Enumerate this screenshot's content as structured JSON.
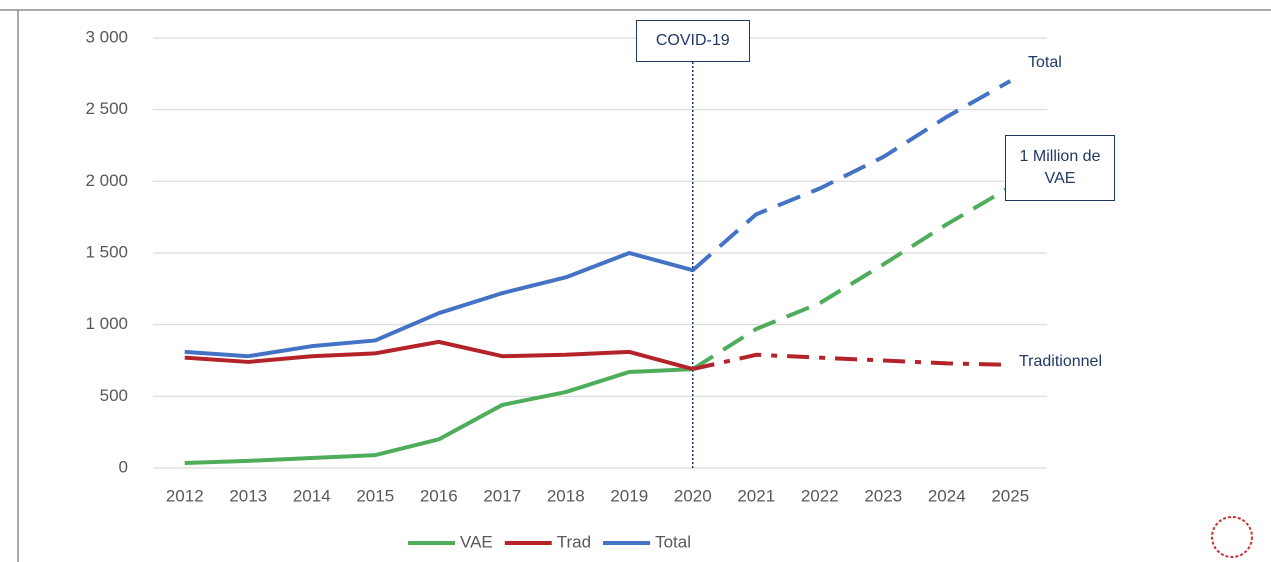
{
  "chart_data": {
    "type": "line",
    "categories": [
      "2012",
      "2013",
      "2014",
      "2015",
      "2016",
      "2017",
      "2018",
      "2019",
      "2020",
      "2021",
      "2022",
      "2023",
      "2024",
      "2025"
    ],
    "series": [
      {
        "name": "VAE",
        "color": "#4ead5b",
        "end_label": "1 Million de VAE",
        "values": [
          35,
          50,
          70,
          90,
          200,
          440,
          530,
          670,
          690,
          970,
          1150,
          1420,
          1700,
          1960
        ]
      },
      {
        "name": "Trad",
        "color": "#b5232a",
        "end_label": "Traditionnel",
        "values": [
          770,
          740,
          780,
          800,
          880,
          780,
          790,
          810,
          690,
          790,
          770,
          750,
          730,
          720
        ]
      },
      {
        "name": "Total",
        "color": "#4472c4",
        "end_label": "Total",
        "values": [
          810,
          780,
          850,
          890,
          1080,
          1220,
          1330,
          1500,
          1380,
          1770,
          1950,
          2170,
          2450,
          2700
        ]
      }
    ],
    "annotation": {
      "text": "COVID-19",
      "x": "2020"
    },
    "ylim": [
      0,
      3000
    ],
    "yticks": [
      0,
      500,
      {
        "value": 1000,
        "label": "1 000"
      },
      {
        "value": 1500,
        "label": "1 500"
      },
      {
        "value": 2000,
        "label": "2 000"
      },
      {
        "value": 2500,
        "label": "2 500"
      },
      {
        "value": 3000,
        "label": "3 000"
      }
    ],
    "grid": true,
    "legend": "bottom"
  }
}
